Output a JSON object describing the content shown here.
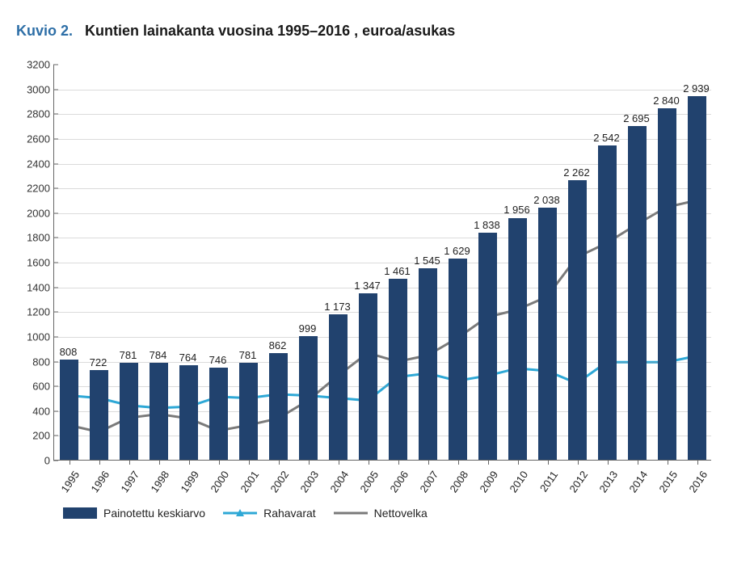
{
  "figure_label_prefix": "Kuvio 2.",
  "figure_title": "Kuntien lainakanta vuosina 1995–2016 , euroa/asukas",
  "chart": {
    "type": "bar+line",
    "background_color": "#ffffff",
    "grid_color": "#999999",
    "axis_color": "#666666",
    "tick_fontsize": 13,
    "barlabel_fontsize": 13,
    "title_fontsize": 18,
    "x_labels_rotation_deg": -55,
    "ylim": [
      0,
      3200
    ],
    "ytick_step": 200,
    "years": [
      "1995",
      "1996",
      "1997",
      "1998",
      "1999",
      "2000",
      "2001",
      "2002",
      "2003",
      "2004",
      "2005",
      "2006",
      "2007",
      "2008",
      "2009",
      "2010",
      "2011",
      "2012",
      "2013",
      "2014",
      "2015",
      "2016"
    ],
    "bar_series": {
      "name": "Painotettu keskiarvo",
      "color": "#21426e",
      "bar_width_ratio": 0.6,
      "values": [
        808,
        722,
        781,
        784,
        764,
        746,
        781,
        862,
        999,
        1173,
        1347,
        1461,
        1545,
        1629,
        1838,
        1956,
        2038,
        2262,
        2542,
        2695,
        2840,
        2939
      ],
      "labels": [
        "808",
        "722",
        "781",
        "784",
        "764",
        "746",
        "781",
        "862",
        "999",
        "1 173",
        "1 347",
        "1 461",
        "1 545",
        "1 629",
        "1 838",
        "1 956",
        "2 038",
        "2 262",
        "2 542",
        "2 695",
        "2 840",
        "2 939"
      ]
    },
    "line_series": [
      {
        "name": "Rahavarat",
        "color": "#2ea8d6",
        "stroke_width": 3,
        "marker": "triangle",
        "marker_size": 7,
        "values": [
          520,
          500,
          440,
          420,
          430,
          510,
          500,
          530,
          520,
          500,
          480,
          670,
          700,
          640,
          680,
          740,
          720,
          620,
          790,
          790,
          790,
          840
        ]
      },
      {
        "name": "Nettovelka",
        "color": "#7a7a7a",
        "stroke_width": 3,
        "marker": "none",
        "values": [
          280,
          225,
          340,
          370,
          335,
          235,
          280,
          335,
          480,
          680,
          865,
          795,
          845,
          985,
          1155,
          1215,
          1320,
          1640,
          1755,
          1905,
          2045,
          2100
        ]
      }
    ],
    "legend": [
      {
        "type": "bar",
        "label_key": "bar_series.name",
        "color_key": "bar_series.color"
      },
      {
        "type": "line-marker",
        "label_key": "line_series.0.name",
        "color_key": "line_series.0.color"
      },
      {
        "type": "line",
        "label_key": "line_series.1.name",
        "color_key": "line_series.1.color"
      }
    ]
  }
}
